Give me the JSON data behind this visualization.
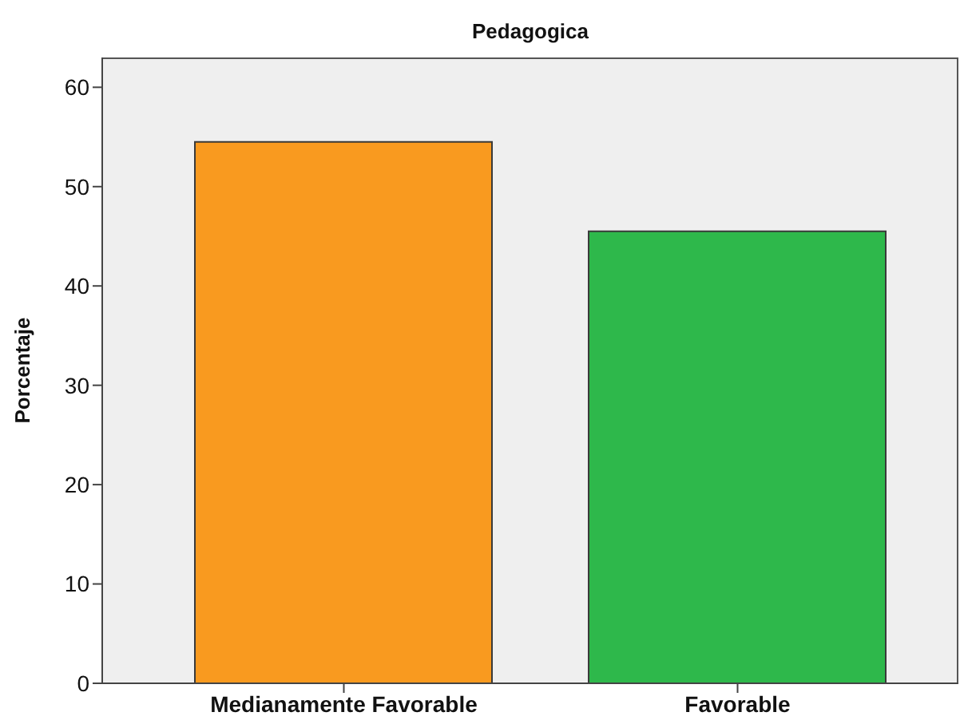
{
  "chart_data": {
    "type": "bar",
    "title": "Pedagogica",
    "ylabel": "Porcentaje",
    "categories": [
      "Medianamente Favorable",
      "Favorable"
    ],
    "values": [
      54.5,
      45.5
    ],
    "colors": [
      "#f99a1f",
      "#2eb84b"
    ],
    "ylim": [
      0,
      63
    ],
    "yticks": [
      0,
      10,
      20,
      30,
      40,
      50,
      60
    ]
  }
}
